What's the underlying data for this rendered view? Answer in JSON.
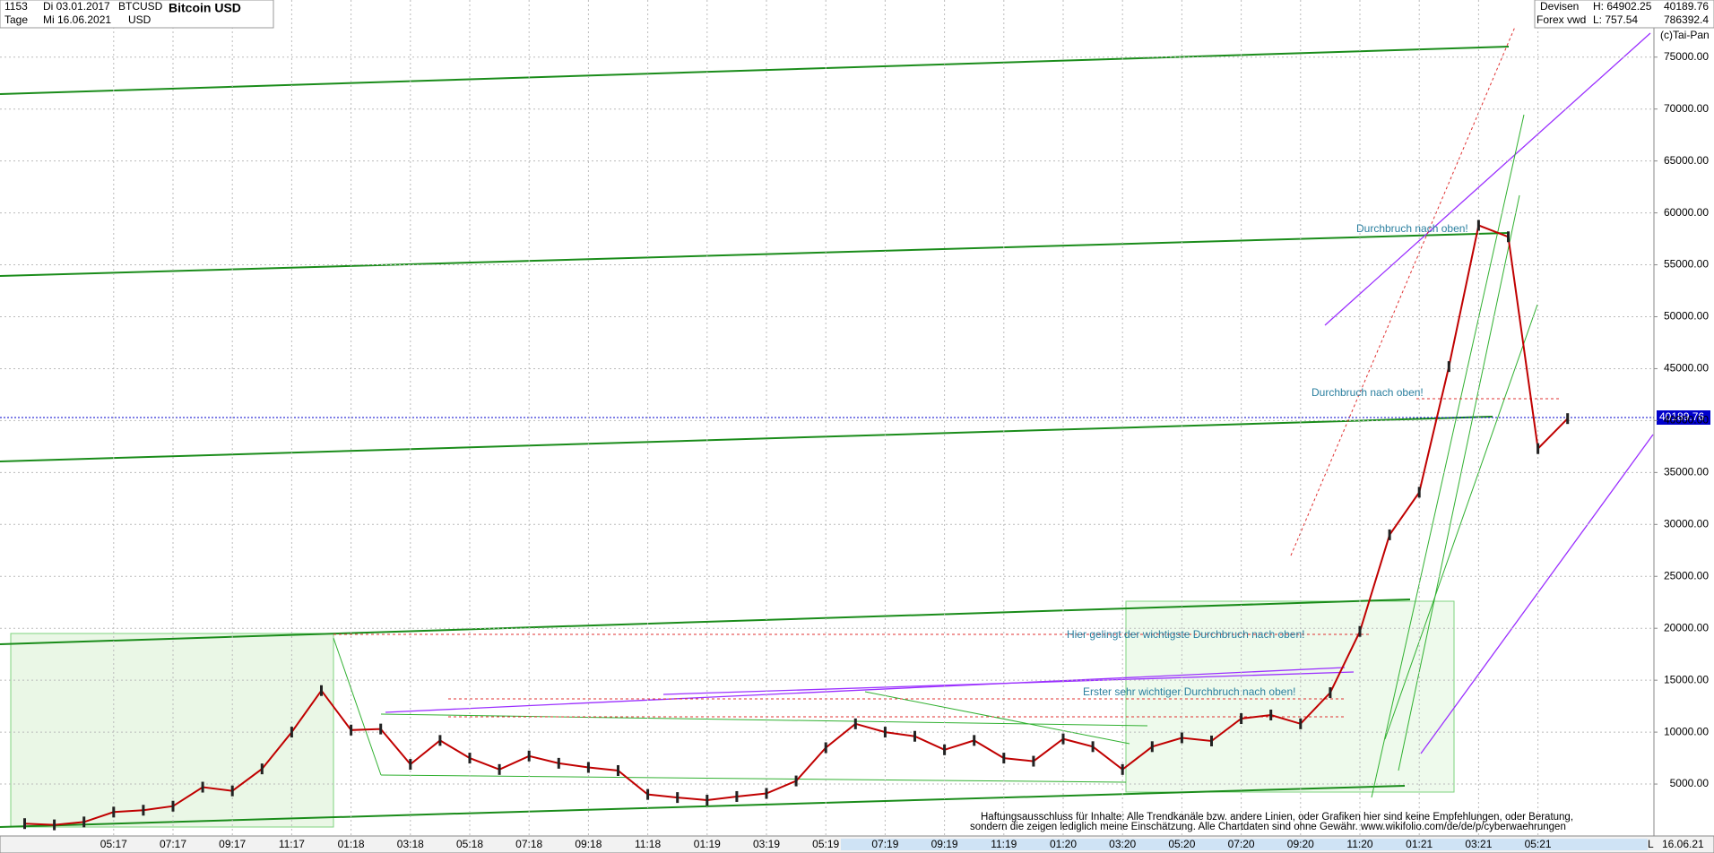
{
  "header": {
    "id": "1153",
    "from": "Di 03.01.2017",
    "to": "Mi 16.06.2021",
    "period": "Tage",
    "symbol": "BTCUSD",
    "currency": "USD",
    "name": "Bitcoin USD",
    "market": "Devisen",
    "source": "Forex vwd",
    "high": "H: 64902.25",
    "low": "L: 757.54",
    "last": "40189.76",
    "volume": "786392.4",
    "copyright": "(c)Tai-Pan",
    "end_date": "16.06.21",
    "scale": "L"
  },
  "chart_data": {
    "type": "line",
    "categories": [
      null,
      null,
      null,
      "05:17",
      null,
      "07:17",
      null,
      "09:17",
      null,
      "11:17",
      null,
      "01:18",
      null,
      "03:18",
      null,
      "05:18",
      null,
      "07:18",
      null,
      "09:18",
      null,
      "11:18",
      null,
      "01:19",
      null,
      "03:19",
      null,
      "05:19",
      null,
      "07:19",
      null,
      "09:19",
      null,
      "11:19",
      null,
      "01:20",
      null,
      "03:20",
      null,
      "05:20",
      null,
      "07:20",
      null,
      "09:20",
      null,
      "11:20",
      null,
      "01:21",
      null,
      "03:21",
      null,
      "05:21",
      null
    ],
    "series": [
      {
        "name": "BTCUSD",
        "color": "#c00000",
        "values": [
          1190,
          1070,
          1350,
          2300,
          2480,
          2870,
          4700,
          4340,
          6460,
          10000,
          14000,
          10200,
          10300,
          6900,
          9200,
          7500,
          6400,
          7700,
          7000,
          6600,
          6300,
          4000,
          3700,
          3450,
          3800,
          4100,
          5300,
          8500,
          10800,
          10000,
          9600,
          8300,
          9200,
          7500,
          7200,
          9350,
          8600,
          6400,
          8600,
          9450,
          9150,
          11300,
          11650,
          10800,
          13800,
          19700,
          29000,
          33100,
          45200,
          58800,
          57700,
          37300,
          40190
        ]
      }
    ],
    "ylim": [
      0,
      80500
    ],
    "yticks": [
      {
        "value": 5000,
        "label": "5000.00"
      },
      {
        "value": 10000,
        "label": "10000.00"
      },
      {
        "value": 15000,
        "label": "15000.00"
      },
      {
        "value": 20000,
        "label": "20000.00"
      },
      {
        "value": 25000,
        "label": "25000.00"
      },
      {
        "value": 30000,
        "label": "30000.00"
      },
      {
        "value": 35000,
        "label": "35000.00"
      },
      {
        "value": 40000,
        "label": "40000.00"
      },
      {
        "value": 45000,
        "label": "45000.00"
      },
      {
        "value": 50000,
        "label": "50000.00"
      },
      {
        "value": 55000,
        "label": "55000.00"
      },
      {
        "value": 60000,
        "label": "60000.00"
      },
      {
        "value": 65000,
        "label": "65000.00"
      },
      {
        "value": 70000,
        "label": "70000.00"
      },
      {
        "value": 75000,
        "label": "75000.00"
      }
    ],
    "grid": true,
    "annotations": [
      "Durchbruch nach oben!",
      "Durchbruch nach oben!",
      "Hier gelingt der wichtigste Durchbruch nach oben!",
      "Erster sehr wichtiger Durchbruch nach oben!"
    ],
    "disclaimer": [
      "Haftungsausschluss für Inhalte: Alle Trendkanäle bzw. andere Linien, oder Grafiken hier sind keine Empfehlungen, oder Beratung,",
      "sondern die zeigen lediglich meine  Einschätzung. Alle Chartdaten sind ohne Gewähr.  www.wikifolio.com/de/de/p/cyberwaehrungen"
    ]
  }
}
